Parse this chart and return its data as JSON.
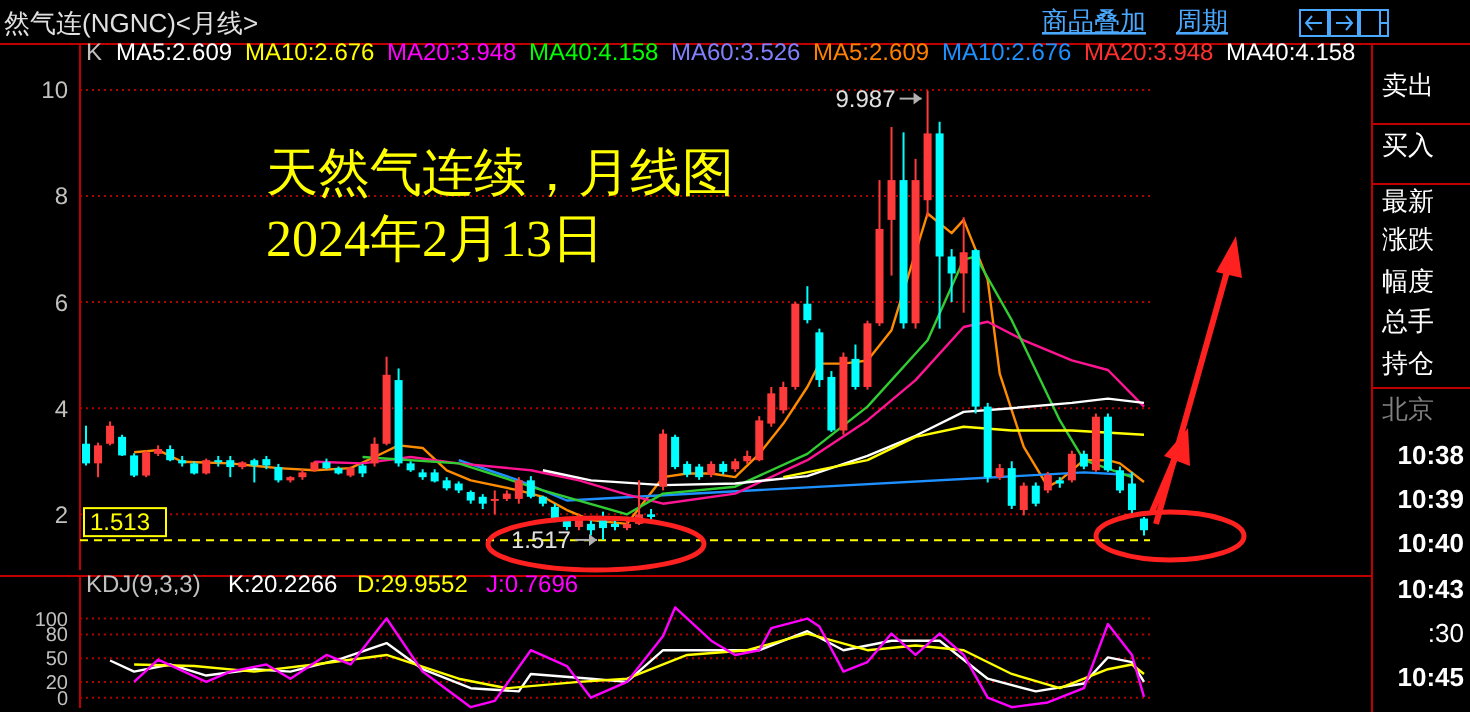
{
  "chart_data": [
    {
      "type": "candlestick",
      "title": "然气连(NGNC)<月线>",
      "categories": [
        null,
        null,
        null,
        null,
        null,
        null,
        null,
        null,
        null,
        null,
        null,
        null,
        null,
        null,
        null,
        null,
        null,
        null,
        null,
        null,
        null,
        null,
        null,
        null,
        null,
        null,
        null,
        null,
        null,
        null,
        null,
        null,
        null,
        null,
        null,
        null,
        null,
        null,
        null,
        null,
        null,
        null,
        null,
        null,
        null,
        null,
        null,
        null,
        null,
        null,
        null,
        null,
        null,
        null,
        null,
        null,
        null,
        null,
        null,
        null,
        null,
        null,
        null,
        null,
        null,
        null,
        null,
        null,
        null,
        null,
        null,
        null,
        null,
        null,
        null,
        null,
        null,
        null,
        null,
        null,
        null,
        null,
        null,
        null,
        null,
        null,
        null,
        null,
        null
      ],
      "ohlc": [
        [
          3.33,
          3.67,
          2.92,
          2.96
        ],
        [
          2.96,
          3.35,
          2.7,
          3.3
        ],
        [
          3.33,
          3.75,
          3.3,
          3.67
        ],
        [
          3.46,
          3.5,
          3.1,
          3.11
        ],
        [
          3.11,
          3.15,
          2.7,
          2.73
        ],
        [
          2.73,
          3.2,
          2.7,
          3.17
        ],
        [
          3.14,
          3.3,
          3.1,
          3.23
        ],
        [
          3.23,
          3.3,
          3.0,
          3.02
        ],
        [
          3.02,
          3.1,
          2.9,
          2.96
        ],
        [
          2.96,
          3.0,
          2.75,
          2.77
        ],
        [
          2.77,
          3.05,
          2.75,
          3.02
        ],
        [
          3.02,
          3.1,
          2.9,
          3.0
        ],
        [
          3.02,
          3.1,
          2.7,
          2.89
        ],
        [
          2.89,
          3.0,
          2.85,
          2.98
        ],
        [
          3.02,
          3.05,
          2.6,
          2.92
        ],
        [
          3.04,
          3.1,
          2.85,
          2.92
        ],
        [
          2.89,
          2.95,
          2.6,
          2.64
        ],
        [
          2.64,
          2.72,
          2.6,
          2.7
        ],
        [
          2.7,
          2.85,
          2.65,
          2.79
        ],
        [
          2.83,
          3.0,
          2.8,
          2.98
        ],
        [
          2.98,
          3.05,
          2.85,
          2.87
        ],
        [
          2.87,
          2.9,
          2.75,
          2.77
        ],
        [
          2.73,
          2.9,
          2.7,
          2.87
        ],
        [
          2.92,
          2.95,
          2.7,
          2.77
        ],
        [
          2.96,
          3.45,
          2.9,
          3.33
        ],
        [
          3.33,
          4.97,
          3.3,
          4.63
        ],
        [
          4.53,
          4.75,
          2.9,
          2.96
        ],
        [
          2.96,
          3.0,
          2.8,
          2.83
        ],
        [
          2.79,
          2.85,
          2.65,
          2.7
        ],
        [
          2.79,
          2.85,
          2.6,
          2.62
        ],
        [
          2.64,
          2.7,
          2.45,
          2.49
        ],
        [
          2.58,
          2.62,
          2.4,
          2.45
        ],
        [
          2.42,
          2.45,
          2.2,
          2.26
        ],
        [
          2.33,
          2.38,
          2.1,
          2.2
        ],
        [
          2.26,
          2.45,
          2.0,
          2.29
        ],
        [
          2.29,
          2.45,
          2.25,
          2.39
        ],
        [
          2.29,
          2.7,
          2.2,
          2.64
        ],
        [
          2.64,
          2.72,
          2.3,
          2.33
        ],
        [
          2.33,
          2.35,
          2.15,
          2.2
        ],
        [
          2.14,
          2.2,
          1.85,
          1.89
        ],
        [
          1.89,
          1.95,
          1.7,
          1.76
        ],
        [
          1.76,
          2.0,
          1.7,
          1.91
        ],
        [
          1.82,
          1.9,
          1.6,
          1.7
        ],
        [
          1.91,
          2.05,
          1.517,
          1.74
        ],
        [
          1.82,
          1.9,
          1.7,
          1.76
        ],
        [
          1.74,
          1.95,
          1.7,
          1.82
        ],
        [
          1.82,
          2.64,
          1.8,
          2.0
        ],
        [
          2.0,
          2.1,
          1.9,
          1.95
        ],
        [
          2.52,
          3.6,
          2.45,
          3.52
        ],
        [
          3.46,
          3.5,
          2.85,
          2.89
        ],
        [
          2.95,
          3.0,
          2.7,
          2.75
        ],
        [
          2.9,
          2.95,
          2.65,
          2.7
        ],
        [
          2.75,
          3.0,
          2.7,
          2.95
        ],
        [
          2.95,
          3.0,
          2.75,
          2.8
        ],
        [
          2.85,
          3.05,
          2.8,
          3.0
        ],
        [
          3.0,
          3.2,
          2.95,
          3.1
        ],
        [
          3.02,
          3.85,
          3.0,
          3.77
        ],
        [
          3.71,
          4.4,
          3.65,
          4.28
        ],
        [
          3.96,
          4.5,
          3.9,
          4.4
        ],
        [
          4.4,
          6.0,
          4.35,
          5.97
        ],
        [
          5.97,
          6.3,
          5.6,
          5.66
        ],
        [
          5.43,
          5.5,
          4.4,
          4.53
        ],
        [
          4.59,
          4.7,
          3.55,
          3.58
        ],
        [
          3.58,
          5.05,
          3.5,
          4.97
        ],
        [
          4.93,
          5.2,
          4.35,
          4.4
        ],
        [
          4.4,
          5.65,
          4.35,
          5.6
        ],
        [
          5.6,
          8.3,
          5.55,
          7.38
        ],
        [
          7.55,
          9.3,
          6.5,
          8.3
        ],
        [
          8.3,
          9.2,
          5.5,
          5.6
        ],
        [
          5.6,
          8.7,
          5.5,
          8.3
        ],
        [
          7.92,
          9.987,
          7.6,
          9.18
        ],
        [
          9.18,
          9.4,
          5.5,
          6.86
        ],
        [
          6.86,
          7.0,
          6.0,
          6.54
        ],
        [
          6.54,
          7.6,
          5.8,
          6.94
        ],
        [
          6.98,
          7.0,
          3.9,
          4.03
        ],
        [
          4.03,
          4.1,
          2.6,
          2.7
        ],
        [
          2.7,
          2.95,
          2.65,
          2.87
        ],
        [
          2.87,
          3.0,
          2.1,
          2.16
        ],
        [
          2.08,
          2.6,
          1.98,
          2.54
        ],
        [
          2.54,
          2.6,
          2.15,
          2.2
        ],
        [
          2.45,
          2.8,
          2.4,
          2.74
        ],
        [
          2.64,
          2.7,
          2.5,
          2.58
        ],
        [
          2.64,
          3.2,
          2.6,
          3.14
        ],
        [
          3.14,
          3.2,
          2.85,
          2.9
        ],
        [
          2.83,
          3.9,
          2.8,
          3.84
        ],
        [
          3.84,
          3.9,
          2.8,
          2.83
        ],
        [
          2.83,
          2.9,
          2.4,
          2.45
        ],
        [
          2.58,
          2.8,
          2.0,
          2.08
        ],
        [
          1.92,
          1.95,
          1.6,
          1.7
        ]
      ],
      "series": [
        {
          "type": "line",
          "color": "#ff8c00",
          "values": [
            null,
            null,
            null,
            null,
            3.17,
            null,
            3.21,
            null,
            2.99,
            null,
            null,
            null,
            2.96,
            null,
            null,
            null,
            2.87,
            null,
            null,
            2.83,
            null,
            null,
            2.87,
            null,
            3.08,
            null,
            3.3,
            null,
            3.25,
            null,
            2.83,
            null,
            2.64,
            null,
            null,
            null,
            2.45,
            null,
            2.33,
            null,
            2.08,
            null,
            1.89,
            null,
            null,
            1.82,
            null,
            null,
            2.7,
            null,
            2.77,
            null,
            2.77,
            null,
            2.7,
            null,
            3.14,
            null,
            3.71,
            null,
            4.4,
            4.84,
            null,
            4.84,
            null,
            4.9,
            null,
            5.47,
            null,
            null,
            7.67,
            null,
            7.3,
            7.55,
            null,
            6.42,
            4.65,
            null,
            3.27,
            null,
            2.52,
            2.64,
            null,
            3.02,
            null,
            3.02,
            2.96,
            null,
            2.61
          ]
        },
        {
          "type": "line",
          "color": "#1e90ff",
          "values": [
            null,
            null,
            null,
            null,
            null,
            null,
            null,
            null,
            null,
            null,
            null,
            null,
            null,
            null,
            null,
            null,
            null,
            null,
            null,
            null,
            null,
            null,
            null,
            null,
            null,
            null,
            null,
            null,
            null,
            null,
            null,
            3.02,
            null,
            null,
            null,
            null,
            2.64,
            null,
            null,
            null,
            2.26,
            null,
            null,
            null,
            null,
            null,
            null,
            null,
            null,
            null,
            null,
            null,
            null,
            null,
            null,
            null,
            null,
            null,
            null,
            null,
            null,
            null,
            null,
            null,
            null,
            null,
            null,
            null,
            null,
            null,
            null,
            null,
            null,
            null,
            null,
            null,
            null,
            null,
            null,
            null,
            null,
            null,
            null,
            2.79,
            null,
            null,
            null,
            2.74,
            null
          ]
        },
        {
          "type": "line",
          "color": "#ff1493",
          "values": [
            null,
            null,
            null,
            null,
            null,
            null,
            null,
            null,
            null,
            null,
            null,
            null,
            null,
            null,
            null,
            null,
            null,
            null,
            null,
            2.99,
            null,
            null,
            null,
            2.96,
            null,
            null,
            null,
            3.08,
            null,
            null,
            null,
            2.96,
            null,
            null,
            null,
            null,
            null,
            2.83,
            null,
            null,
            null,
            2.64,
            null,
            null,
            null,
            2.37,
            null,
            null,
            2.2,
            null,
            null,
            null,
            null,
            null,
            2.39,
            null,
            null,
            null,
            null,
            null,
            3.02,
            null,
            null,
            null,
            null,
            3.77,
            null,
            null,
            null,
            4.53,
            null,
            null,
            null,
            5.53,
            null,
            5.63,
            null,
            null,
            5.28,
            null,
            null,
            null,
            4.9,
            null,
            null,
            4.72,
            null,
            null,
            4.03
          ]
        },
        {
          "type": "line",
          "color": "#32cd32",
          "values": [
            null,
            null,
            null,
            null,
            null,
            null,
            null,
            null,
            null,
            null,
            null,
            null,
            null,
            null,
            null,
            null,
            null,
            null,
            null,
            null,
            null,
            null,
            null,
            3.08,
            null,
            null,
            null,
            null,
            null,
            null,
            null,
            2.96,
            null,
            null,
            null,
            null,
            null,
            null,
            2.45,
            null,
            null,
            null,
            null,
            null,
            null,
            2.0,
            null,
            null,
            2.39,
            null,
            null,
            null,
            null,
            null,
            2.52,
            null,
            null,
            null,
            null,
            null,
            3.14,
            null,
            null,
            null,
            null,
            4.03,
            null,
            null,
            null,
            null,
            5.28,
            null,
            null,
            6.8,
            6.86,
            null,
            null,
            5.66,
            null,
            null,
            null,
            3.77,
            null,
            3.02,
            null,
            null,
            null,
            2.7,
            null
          ]
        },
        {
          "type": "line",
          "color": "#ffffff",
          "values": [
            null,
            null,
            null,
            null,
            null,
            null,
            null,
            null,
            null,
            null,
            null,
            null,
            null,
            null,
            null,
            null,
            null,
            null,
            null,
            null,
            null,
            null,
            null,
            null,
            null,
            null,
            null,
            null,
            null,
            null,
            null,
            null,
            null,
            null,
            null,
            null,
            null,
            null,
            2.83,
            null,
            null,
            null,
            2.64,
            null,
            null,
            null,
            null,
            null,
            2.55,
            null,
            null,
            null,
            null,
            null,
            2.58,
            null,
            null,
            null,
            null,
            null,
            2.72,
            null,
            null,
            null,
            null,
            3.1,
            null,
            null,
            null,
            3.48,
            null,
            null,
            null,
            3.93,
            null,
            null,
            null,
            4.0,
            null,
            null,
            null,
            null,
            4.1,
            null,
            null,
            4.18,
            null,
            null,
            4.1
          ]
        },
        {
          "type": "line",
          "color": "#ffff00",
          "values": [
            null,
            null,
            null,
            null,
            null,
            null,
            null,
            null,
            null,
            null,
            null,
            null,
            null,
            null,
            null,
            null,
            null,
            null,
            null,
            null,
            null,
            null,
            null,
            null,
            null,
            null,
            null,
            null,
            null,
            null,
            null,
            null,
            null,
            null,
            null,
            null,
            null,
            null,
            null,
            null,
            null,
            null,
            null,
            null,
            null,
            null,
            null,
            null,
            null,
            null,
            null,
            null,
            null,
            null,
            null,
            null,
            null,
            null,
            2.7,
            null,
            null,
            null,
            null,
            null,
            null,
            3.02,
            null,
            null,
            null,
            3.46,
            null,
            null,
            null,
            3.65,
            null,
            null,
            null,
            3.58,
            null,
            null,
            null,
            null,
            3.58,
            null,
            null,
            null,
            null,
            null,
            3.5
          ]
        }
      ],
      "ylim": [
        0.95,
        10.3
      ],
      "yticks": [
        2,
        4,
        6,
        8,
        10
      ],
      "grid": "y",
      "tick_labels": "y",
      "ref_lines": [
        {
          "axis": "y",
          "value": 1.513,
          "label": "1.513",
          "color": "#ffff00",
          "line_style": "dashed"
        }
      ],
      "annotations": [
        "K",
        "MA5:2.609",
        "MA10:2.676",
        "MA20:3.948",
        "MA40:4.158",
        "MA60:3.526",
        "MA5:2.609",
        "MA10:2.676",
        "MA20:3.948",
        "MA40:4.158",
        "天然气连续，月线图",
        "2024年2月13日",
        "9.987",
        {
          "text": "1.517",
          "y": 1.517
        }
      ]
    },
    {
      "type": "line",
      "title": "KDJ(9,3,3)",
      "categories": [
        null,
        null,
        null,
        null,
        null,
        null,
        null,
        null,
        null,
        null,
        null,
        null,
        null,
        null,
        null,
        null,
        null,
        null,
        null,
        null,
        null,
        null,
        null,
        null,
        null,
        null,
        null,
        null,
        null,
        null,
        null,
        null,
        null,
        null,
        null,
        null,
        null,
        null,
        null,
        null,
        null,
        null,
        null,
        null,
        null,
        null,
        null,
        null,
        null,
        null,
        null,
        null,
        null,
        null,
        null,
        null,
        null,
        null,
        null,
        null,
        null,
        null,
        null,
        null,
        null,
        null,
        null,
        null,
        null,
        null,
        null,
        null,
        null,
        null,
        null,
        null,
        null,
        null,
        null,
        null,
        null,
        null,
        null,
        null,
        null,
        null,
        null,
        null,
        null
      ],
      "ylim": [
        -13,
        131
      ],
      "yticks": [
        0,
        20,
        50,
        80,
        100
      ],
      "grid": "y",
      "tick_labels": "y",
      "series": [
        {
          "name": "K:20.2266",
          "color": "#ffffff",
          "values": [
            null,
            null,
            47,
            null,
            33,
            null,
            null,
            42,
            null,
            null,
            28,
            null,
            null,
            null,
            36,
            null,
            null,
            33,
            null,
            null,
            null,
            48,
            null,
            null,
            null,
            69,
            null,
            null,
            36,
            null,
            null,
            null,
            12,
            null,
            null,
            null,
            8,
            30,
            null,
            null,
            null,
            null,
            24,
            null,
            null,
            20,
            null,
            null,
            60,
            null,
            null,
            null,
            null,
            60,
            null,
            null,
            60,
            null,
            null,
            null,
            84,
            null,
            null,
            60,
            null,
            null,
            null,
            72,
            null,
            null,
            null,
            72,
            null,
            null,
            null,
            24,
            null,
            null,
            null,
            8,
            null,
            null,
            null,
            18,
            null,
            51,
            null,
            45,
            20
          ]
        },
        {
          "name": "D:29.9552",
          "color": "#ffff00",
          "values": [
            null,
            null,
            null,
            null,
            42,
            null,
            null,
            null,
            null,
            40,
            null,
            null,
            null,
            null,
            33,
            null,
            null,
            null,
            null,
            42,
            null,
            null,
            null,
            null,
            null,
            54,
            null,
            null,
            null,
            null,
            null,
            24,
            null,
            null,
            null,
            12,
            null,
            null,
            null,
            null,
            null,
            20,
            null,
            null,
            null,
            24,
            null,
            null,
            null,
            null,
            54,
            null,
            null,
            null,
            null,
            60,
            null,
            null,
            null,
            null,
            81,
            null,
            null,
            null,
            null,
            60,
            null,
            null,
            null,
            66,
            null,
            null,
            null,
            60,
            null,
            null,
            null,
            30,
            null,
            null,
            null,
            12,
            null,
            null,
            null,
            36,
            null,
            42,
            30
          ]
        },
        {
          "name": "J:0.7696",
          "color": "#ff00ff",
          "values": [
            null,
            null,
            null,
            null,
            20,
            null,
            48,
            null,
            null,
            null,
            20,
            null,
            33,
            null,
            null,
            42,
            null,
            24,
            null,
            null,
            54,
            null,
            42,
            null,
            null,
            100,
            null,
            null,
            33,
            null,
            null,
            null,
            -12,
            null,
            -4,
            null,
            null,
            60,
            null,
            null,
            40,
            null,
            0,
            null,
            null,
            20,
            null,
            null,
            78,
            114,
            null,
            null,
            72,
            null,
            54,
            null,
            60,
            88,
            null,
            null,
            100,
            90,
            null,
            33,
            null,
            45,
            null,
            81,
            null,
            54,
            null,
            81,
            null,
            54,
            null,
            0,
            null,
            -12,
            null,
            null,
            -6,
            null,
            null,
            12,
            null,
            93,
            null,
            54,
            1
          ]
        }
      ]
    },
    {
      "type": "other",
      "annotations": [
        "商品叠加",
        "周期",
        "卖出",
        "买入",
        "最新",
        "涨跌",
        "幅度",
        "总手",
        "持仓",
        "北京",
        "10:38",
        "10:39",
        "10:40",
        "10:43",
        ":30",
        "10:45"
      ]
    }
  ]
}
